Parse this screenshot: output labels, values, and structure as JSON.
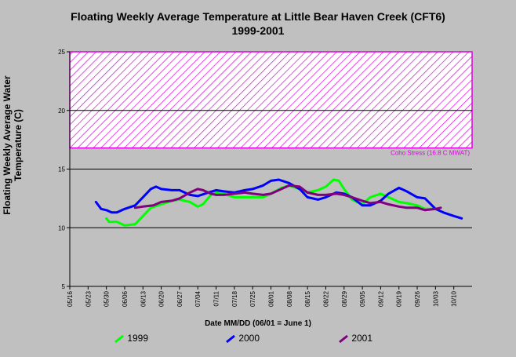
{
  "chart_data": {
    "type": "line",
    "title": "Floating Weekly Average Temperature at Little Bear Haven Creek (CFT6)",
    "subtitle": "1999-2001",
    "ylabel": "Floating Weekly Average Water Temperature (C)",
    "xlabel": "Date MM/DD (06/01 = June 1)",
    "ylim": [
      5,
      25
    ],
    "yticks": [
      5,
      10,
      15,
      20,
      25
    ],
    "xticks": [
      "05/16",
      "05/23",
      "05/30",
      "06/06",
      "06/13",
      "06/20",
      "06/27",
      "07/04",
      "07/11",
      "07/18",
      "07/25",
      "08/01",
      "08/08",
      "08/15",
      "08/22",
      "08/29",
      "09/05",
      "09/12",
      "09/19",
      "09/26",
      "10/03",
      "10/10"
    ],
    "x_start": "05/16",
    "x_end": "10/17",
    "grid": "horizontal",
    "stress_band": {
      "label": "Coho Stress (16.8 C MWAT)",
      "from": 16.8,
      "to": 25,
      "color": "#e000e0"
    },
    "series": [
      {
        "name": "1999",
        "color": "#00ff00",
        "points": [
          [
            "05/30",
            10.8
          ],
          [
            "05/31",
            10.5
          ],
          [
            "06/03",
            10.5
          ],
          [
            "06/06",
            10.2
          ],
          [
            "06/10",
            10.3
          ],
          [
            "06/13",
            11.0
          ],
          [
            "06/16",
            11.7
          ],
          [
            "06/20",
            12.0
          ],
          [
            "06/24",
            12.3
          ],
          [
            "06/27",
            12.4
          ],
          [
            "07/01",
            12.2
          ],
          [
            "07/04",
            11.8
          ],
          [
            "07/06",
            12.0
          ],
          [
            "07/09",
            12.8
          ],
          [
            "07/11",
            13.0
          ],
          [
            "07/14",
            12.9
          ],
          [
            "07/18",
            12.6
          ],
          [
            "07/22",
            12.6
          ],
          [
            "07/25",
            12.6
          ],
          [
            "07/29",
            12.6
          ],
          [
            "08/01",
            12.9
          ],
          [
            "08/05",
            13.4
          ],
          [
            "08/08",
            13.6
          ],
          [
            "08/12",
            13.3
          ],
          [
            "08/15",
            13.0
          ],
          [
            "08/19",
            13.2
          ],
          [
            "08/22",
            13.5
          ],
          [
            "08/25",
            14.1
          ],
          [
            "08/27",
            14.0
          ],
          [
            "08/29",
            13.3
          ],
          [
            "09/01",
            12.4
          ],
          [
            "09/05",
            12.0
          ],
          [
            "09/08",
            12.6
          ],
          [
            "09/12",
            12.9
          ],
          [
            "09/15",
            12.6
          ],
          [
            "09/19",
            12.2
          ],
          [
            "09/22",
            12.1
          ],
          [
            "09/26",
            11.9
          ],
          [
            "09/29",
            11.6
          ],
          [
            "10/03",
            11.6
          ]
        ]
      },
      {
        "name": "2000",
        "color": "#0000ff",
        "points": [
          [
            "05/26",
            12.2
          ],
          [
            "05/28",
            11.6
          ],
          [
            "05/30",
            11.5
          ],
          [
            "06/01",
            11.3
          ],
          [
            "06/03",
            11.3
          ],
          [
            "06/06",
            11.6
          ],
          [
            "06/10",
            11.9
          ],
          [
            "06/13",
            12.6
          ],
          [
            "06/16",
            13.3
          ],
          [
            "06/18",
            13.5
          ],
          [
            "06/20",
            13.3
          ],
          [
            "06/24",
            13.2
          ],
          [
            "06/27",
            13.2
          ],
          [
            "07/01",
            12.8
          ],
          [
            "07/04",
            12.7
          ],
          [
            "07/08",
            13.0
          ],
          [
            "07/11",
            13.2
          ],
          [
            "07/14",
            13.1
          ],
          [
            "07/18",
            13.0
          ],
          [
            "07/22",
            13.2
          ],
          [
            "07/25",
            13.3
          ],
          [
            "07/29",
            13.6
          ],
          [
            "08/01",
            14.0
          ],
          [
            "08/04",
            14.1
          ],
          [
            "08/08",
            13.8
          ],
          [
            "08/12",
            13.3
          ],
          [
            "08/15",
            12.6
          ],
          [
            "08/19",
            12.4
          ],
          [
            "08/22",
            12.6
          ],
          [
            "08/26",
            13.0
          ],
          [
            "08/29",
            12.9
          ],
          [
            "09/01",
            12.6
          ],
          [
            "09/05",
            11.9
          ],
          [
            "09/08",
            11.9
          ],
          [
            "09/12",
            12.3
          ],
          [
            "09/15",
            12.9
          ],
          [
            "09/19",
            13.4
          ],
          [
            "09/22",
            13.1
          ],
          [
            "09/26",
            12.6
          ],
          [
            "09/29",
            12.5
          ],
          [
            "10/03",
            11.6
          ],
          [
            "10/06",
            11.3
          ],
          [
            "10/10",
            11.0
          ],
          [
            "10/13",
            10.8
          ]
        ]
      },
      {
        "name": "2001",
        "color": "#800080",
        "points": [
          [
            "06/10",
            11.7
          ],
          [
            "06/13",
            11.8
          ],
          [
            "06/17",
            11.9
          ],
          [
            "06/20",
            12.2
          ],
          [
            "06/24",
            12.3
          ],
          [
            "06/27",
            12.5
          ],
          [
            "07/01",
            13.0
          ],
          [
            "07/04",
            13.3
          ],
          [
            "07/06",
            13.2
          ],
          [
            "07/09",
            12.9
          ],
          [
            "07/11",
            12.8
          ],
          [
            "07/14",
            12.8
          ],
          [
            "07/18",
            12.9
          ],
          [
            "07/22",
            13.0
          ],
          [
            "07/25",
            12.9
          ],
          [
            "07/29",
            12.8
          ],
          [
            "08/01",
            12.9
          ],
          [
            "08/05",
            13.3
          ],
          [
            "08/08",
            13.6
          ],
          [
            "08/12",
            13.5
          ],
          [
            "08/15",
            13.0
          ],
          [
            "08/19",
            12.8
          ],
          [
            "08/22",
            12.8
          ],
          [
            "08/26",
            12.9
          ],
          [
            "08/29",
            12.8
          ],
          [
            "09/01",
            12.6
          ],
          [
            "09/05",
            12.3
          ],
          [
            "09/08",
            12.1
          ],
          [
            "09/12",
            12.2
          ],
          [
            "09/15",
            12.0
          ],
          [
            "09/19",
            11.8
          ],
          [
            "09/22",
            11.7
          ],
          [
            "09/26",
            11.7
          ],
          [
            "09/29",
            11.5
          ],
          [
            "10/03",
            11.6
          ],
          [
            "10/05",
            11.7
          ]
        ]
      }
    ]
  }
}
